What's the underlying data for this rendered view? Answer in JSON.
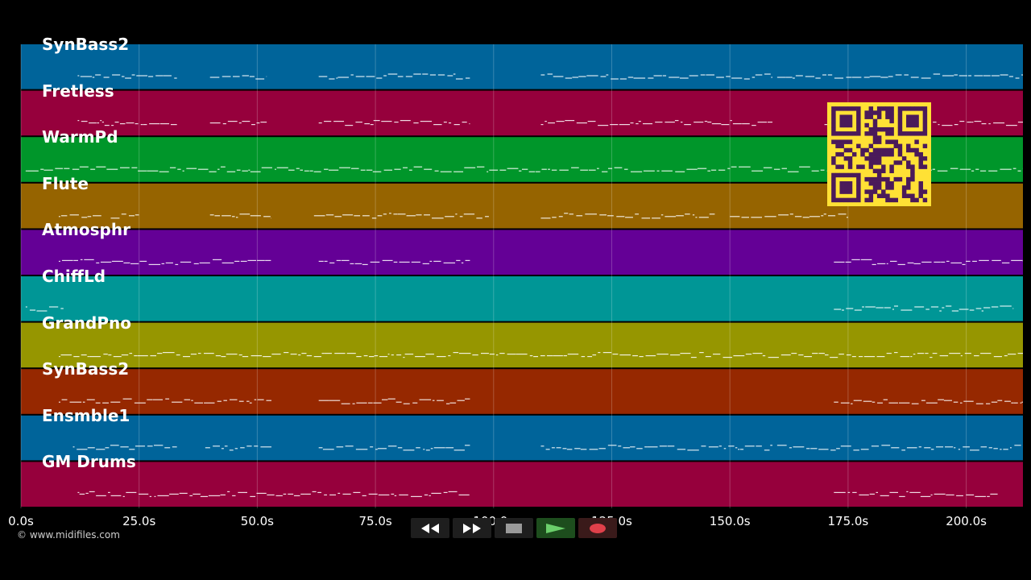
{
  "tracks": [
    {
      "name": "SynBass2",
      "color": "#00649a"
    },
    {
      "name": "Fretless",
      "color": "#96003c"
    },
    {
      "name": "WarmPd",
      "color": "#00962a"
    },
    {
      "name": "Flute",
      "color": "#966400"
    },
    {
      "name": "Atmosphr",
      "color": "#640096"
    },
    {
      "name": "ChiffLd",
      "color": "#009696"
    },
    {
      "name": "GrandPno",
      "color": "#969600"
    },
    {
      "name": "SynBass2",
      "color": "#962800"
    },
    {
      "name": "Ensmble1",
      "color": "#00649a"
    },
    {
      "name": "GM Drums",
      "color": "#96003c"
    }
  ],
  "timeline": {
    "start_seconds": 0,
    "end_seconds": 212,
    "ticks": [
      "0.0s",
      "25.0s",
      "50.0s",
      "75.0s",
      "100.0s",
      "125.0s",
      "150.0s",
      "175.0s",
      "200.0s"
    ]
  },
  "copyright": "© www.midifiles.com",
  "transport": {
    "rewind_icon": "rewind-icon",
    "fast_forward_icon": "fast-forward-icon",
    "stop_icon": "stop-icon",
    "play_icon": "play-icon",
    "record_icon": "record-icon",
    "play_color": "#6bcf6b",
    "record_color": "#e0404a"
  },
  "qr_color": "#ffe135"
}
